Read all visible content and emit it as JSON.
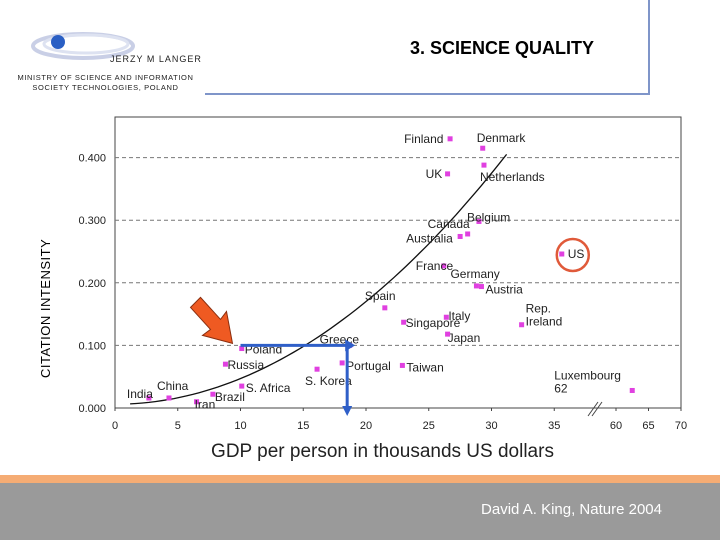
{
  "header": {
    "author": "JERZY M LANGER",
    "ministry": "MINISTRY OF SCIENCE AND INFORMATION SOCIETY TECHNOLOGIES, POLAND",
    "title": "3. SCIENCE QUALITY"
  },
  "footer": {
    "citation": "David A. King, Nature 2004"
  },
  "colors": {
    "point": "#e040e0",
    "accent_arrow": "#ef5a22",
    "highlight_circle": "#e05a3a",
    "marker_lines": "#2f5fc8",
    "footer_bar": "#f5ac74",
    "footer": "#9a9a9a"
  },
  "chart_data": {
    "type": "scatter",
    "xlabel": "GDP per person in thousands US dollars",
    "ylabel": "CITATION INTENSITY",
    "xlim": [
      0,
      70
    ],
    "ylim": [
      0,
      0.43
    ],
    "xticks": [
      "0",
      "5",
      "10",
      "15",
      "20",
      "25",
      "30",
      "35",
      "60",
      "65",
      "70"
    ],
    "yticks": [
      "0.000",
      "0.100",
      "0.200",
      "0.300",
      "0.400"
    ],
    "grid": "horizontal dashed",
    "axis_break_note": "x axis break between 35 and 60",
    "points": [
      {
        "label": "India",
        "x": 2.7,
        "y": 0.016
      },
      {
        "label": "China",
        "x": 4.3,
        "y": 0.016
      },
      {
        "label": "Iran",
        "x": 6.5,
        "y": 0.01
      },
      {
        "label": "Brazil",
        "x": 7.8,
        "y": 0.022
      },
      {
        "label": "Russia",
        "x": 8.8,
        "y": 0.07
      },
      {
        "label": "Poland",
        "x": 10.1,
        "y": 0.095
      },
      {
        "label": "S. Africa",
        "x": 10.1,
        "y": 0.035
      },
      {
        "label": "S. Korea",
        "x": 16.1,
        "y": 0.062
      },
      {
        "label": "Portugal",
        "x": 18.1,
        "y": 0.072
      },
      {
        "label": "Greece",
        "x": 18.7,
        "y": 0.1
      },
      {
        "label": "Spain",
        "x": 21.5,
        "y": 0.16
      },
      {
        "label": "Taiwan",
        "x": 22.9,
        "y": 0.068
      },
      {
        "label": "Singapore",
        "x": 23.0,
        "y": 0.137
      },
      {
        "label": "France",
        "x": 26.2,
        "y": 0.227
      },
      {
        "label": "Italy",
        "x": 26.4,
        "y": 0.145
      },
      {
        "label": "Japan",
        "x": 26.5,
        "y": 0.118
      },
      {
        "label": "UK",
        "x": 26.5,
        "y": 0.374
      },
      {
        "label": "Finland",
        "x": 26.7,
        "y": 0.43
      },
      {
        "label": "Australia",
        "x": 27.5,
        "y": 0.274
      },
      {
        "label": "Canada",
        "x": 28.1,
        "y": 0.278
      },
      {
        "label": "Belgium",
        "x": 29.0,
        "y": 0.298
      },
      {
        "label": "Germany",
        "x": 28.8,
        "y": 0.195
      },
      {
        "label": "Austria",
        "x": 29.2,
        "y": 0.194
      },
      {
        "label": "Denmark",
        "x": 29.3,
        "y": 0.415
      },
      {
        "label": "Netherlands",
        "x": 29.4,
        "y": 0.388
      },
      {
        "label": "Rep. Ireland",
        "x": 32.4,
        "y": 0.133
      },
      {
        "label": "US",
        "x": 35.6,
        "y": 0.246
      },
      {
        "label": "Luxembourg",
        "x": 62.5,
        "y": 0.028
      }
    ],
    "display_labels": {
      "India": "India",
      "China": "China",
      "Iran": "Iran",
      "Brazil": "Brazil",
      "Russia": "Russia",
      "Poland": "Poland",
      "S. Africa": "S. Africa",
      "S. Korea": "S. Korea",
      "Portugal": "Portugal",
      "Greece": "Greece",
      "Spain": "Spain",
      "Taiwan": "Taiwan",
      "Singapore": "Singapore",
      "France": "France",
      "Italy": "Italy",
      "Japan": "Japan",
      "UK": "UK",
      "Finland": "Finland",
      "Australia": "Australia",
      "Canada": "Canada",
      "Belgium": "Belgium",
      "Germany": "Germany",
      "Austria": "Austria",
      "Denmark": "Denmark",
      "Netherlands": "Netherlands",
      "Rep. Ireland": "Rep.\nIreland",
      "US": "US",
      "Luxembourg": "Luxembourg\n62"
    },
    "trend_curve": true,
    "highlight": {
      "label": "Poland",
      "x": 10,
      "y": 0.1,
      "x_reference": 18.5
    }
  }
}
